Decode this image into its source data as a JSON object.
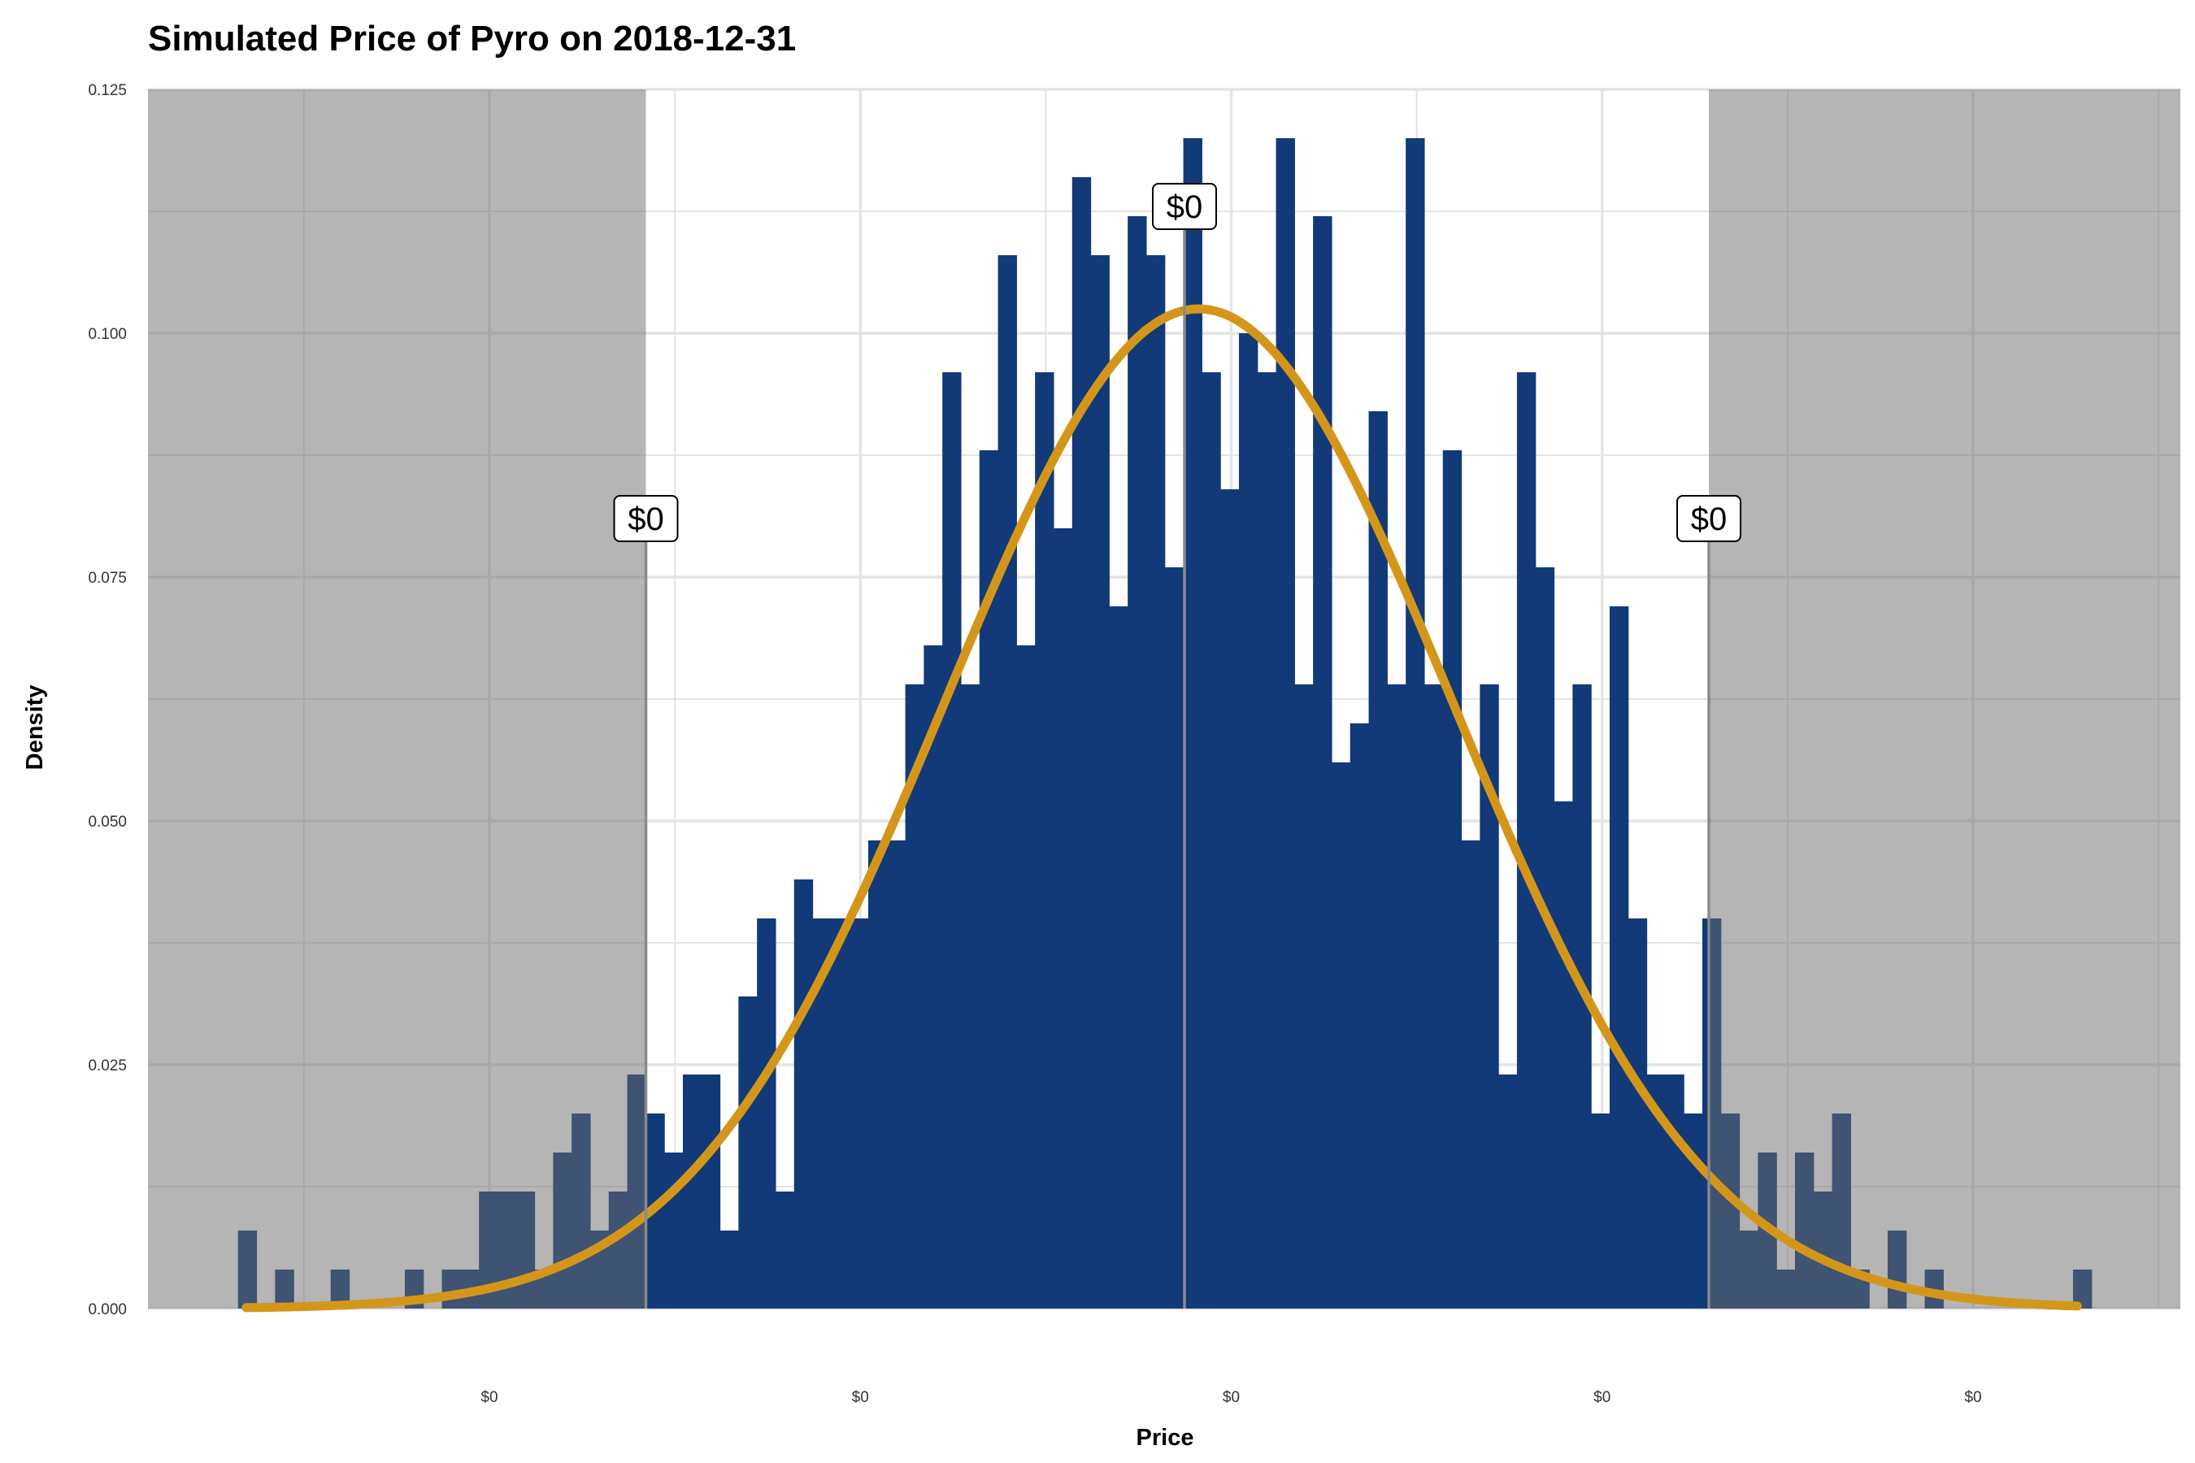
{
  "chart_data": {
    "type": "bar",
    "title": "Simulated Price of Pyro on 2018-12-31",
    "xlabel": "Price",
    "ylabel": "Density",
    "ylim": [
      0,
      0.125
    ],
    "y_ticks": [
      "0.000",
      "0.025",
      "0.050",
      "0.075",
      "0.100",
      "0.125"
    ],
    "y_tick_values": [
      0,
      0.025,
      0.05,
      0.075,
      0.1,
      0.125
    ],
    "x_tick_labels": [
      "$0",
      "$0",
      "$0",
      "$0",
      "$0"
    ],
    "grid": true,
    "histogram_bins": 100,
    "histogram_density": [
      0.008,
      0.0,
      0.004,
      0.0,
      0.0,
      0.004,
      0.0,
      0.0,
      0.0,
      0.004,
      0.0,
      0.004,
      0.004,
      0.012,
      0.012,
      0.012,
      0.004,
      0.016,
      0.02,
      0.008,
      0.012,
      0.024,
      0.02,
      0.016,
      0.024,
      0.024,
      0.008,
      0.032,
      0.04,
      0.012,
      0.044,
      0.04,
      0.04,
      0.04,
      0.048,
      0.048,
      0.064,
      0.068,
      0.096,
      0.064,
      0.088,
      0.108,
      0.068,
      0.096,
      0.08,
      0.116,
      0.108,
      0.072,
      0.112,
      0.108,
      0.076,
      0.12,
      0.096,
      0.084,
      0.1,
      0.096,
      0.12,
      0.064,
      0.112,
      0.056,
      0.06,
      0.092,
      0.064,
      0.12,
      0.064,
      0.088,
      0.048,
      0.064,
      0.024,
      0.096,
      0.076,
      0.052,
      0.064,
      0.02,
      0.072,
      0.04,
      0.024,
      0.024,
      0.02,
      0.04,
      0.02,
      0.008,
      0.016,
      0.004,
      0.016,
      0.012,
      0.02,
      0.004,
      0.0,
      0.008,
      0.0,
      0.004,
      0.0,
      0.0,
      0.0,
      0.0,
      0.0,
      0.0,
      0.0,
      0.004
    ],
    "fitted_curve": {
      "mean_position_fraction": 0.517,
      "sd_fraction": 0.125,
      "peak_density": 0.1025
    },
    "reference_lines": [
      {
        "label": "$0",
        "position_fraction": 0.245,
        "density": 0.081
      },
      {
        "label": "$0",
        "position_fraction": 0.51,
        "density": 0.113
      },
      {
        "label": "$0",
        "position_fraction": 0.768,
        "density": 0.081
      }
    ],
    "shaded_regions": [
      "left tail",
      "right tail"
    ],
    "colors": {
      "bars": "#123a78",
      "curve": "#d4961a",
      "shade": "#6b6b6b",
      "grid": "#e4e4e4",
      "shade_grid": "#9a9a9a"
    }
  }
}
